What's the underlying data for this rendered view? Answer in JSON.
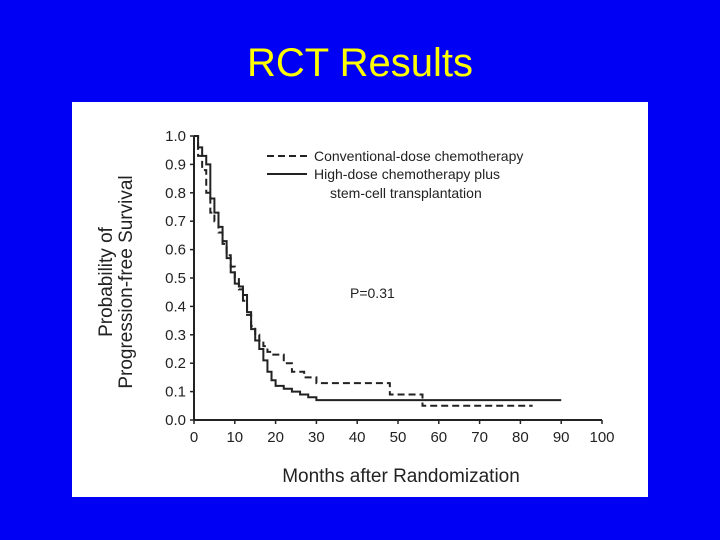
{
  "slide": {
    "title": "RCT Results",
    "background": "#0000f5",
    "title_color": "#ffff00"
  },
  "chart_data": {
    "type": "line",
    "title": "",
    "xlabel": "Months after Randomization",
    "ylabel_line1": "Probability of",
    "ylabel_line2": "Progression-free Survival",
    "xlim": [
      0,
      100
    ],
    "ylim": [
      0.0,
      1.0
    ],
    "x_ticks": [
      "0",
      "10",
      "20",
      "30",
      "40",
      "50",
      "60",
      "70",
      "80",
      "90",
      "100"
    ],
    "y_ticks": [
      "0.0",
      "0.1",
      "0.2",
      "0.3",
      "0.4",
      "0.5",
      "0.6",
      "0.7",
      "0.8",
      "0.9",
      "1.0"
    ],
    "legend_position": "top-right",
    "annotation": "P=0.31",
    "series": [
      {
        "name": "Conventional-dose chemotherapy",
        "style": "dashed",
        "x": [
          0,
          1,
          2,
          3,
          4,
          5,
          6,
          7,
          8,
          9,
          10,
          11,
          12,
          13,
          14,
          15,
          16,
          17,
          18,
          19,
          20,
          22,
          24,
          27,
          30,
          48,
          56,
          83
        ],
        "y": [
          1.0,
          0.93,
          0.88,
          0.8,
          0.73,
          0.7,
          0.66,
          0.62,
          0.58,
          0.54,
          0.5,
          0.46,
          0.42,
          0.37,
          0.33,
          0.3,
          0.28,
          0.26,
          0.24,
          0.23,
          0.23,
          0.2,
          0.17,
          0.15,
          0.13,
          0.09,
          0.05,
          0.05
        ]
      },
      {
        "name": "High-dose chemotherapy plus stem-cell transplantation",
        "style": "solid",
        "x": [
          0,
          1,
          2,
          3,
          4,
          5,
          6,
          7,
          8,
          9,
          10,
          11,
          12,
          13,
          14,
          15,
          16,
          17,
          18,
          19,
          20,
          22,
          24,
          26,
          28,
          30,
          90
        ],
        "y": [
          1.0,
          0.96,
          0.93,
          0.9,
          0.78,
          0.73,
          0.68,
          0.63,
          0.57,
          0.52,
          0.48,
          0.47,
          0.44,
          0.38,
          0.32,
          0.28,
          0.25,
          0.21,
          0.17,
          0.14,
          0.12,
          0.11,
          0.1,
          0.09,
          0.08,
          0.07,
          0.07
        ]
      }
    ]
  }
}
